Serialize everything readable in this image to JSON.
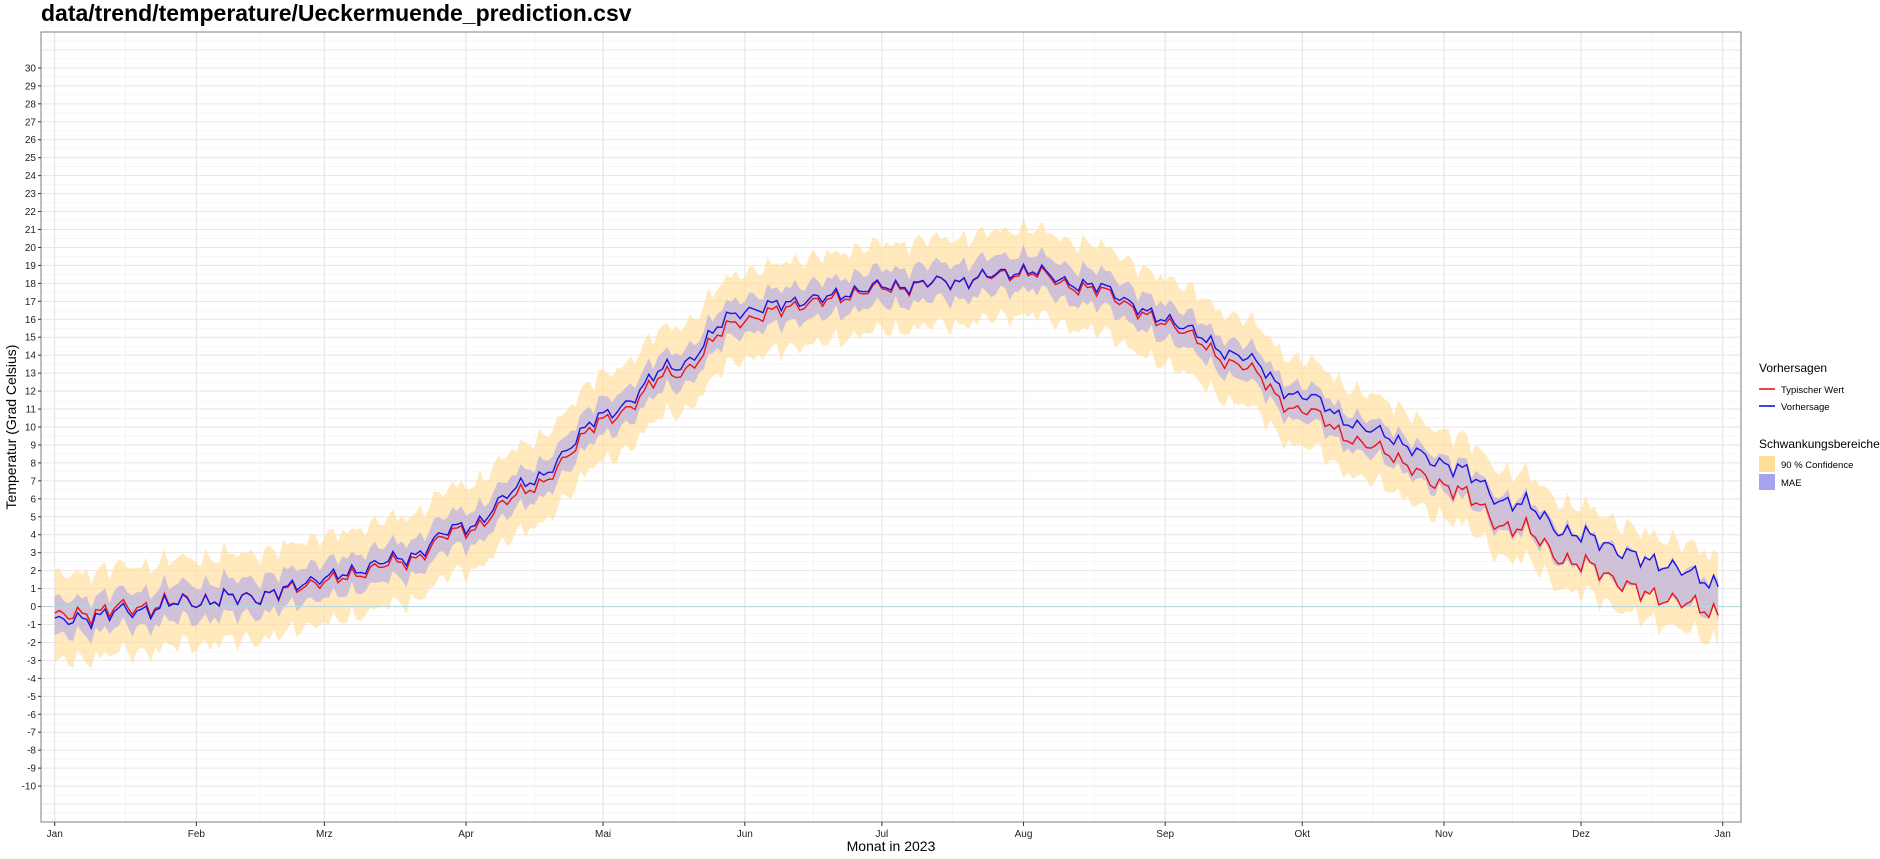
{
  "chart_data": {
    "type": "line",
    "title": "data/trend/temperature/Ueckermuende_prediction.csv",
    "xlabel": "Monat in 2023",
    "ylabel": "Temperatur (Grad Celsius)",
    "ylim": [
      -12,
      32
    ],
    "xlim": [
      -3,
      369
    ],
    "y_ticks": [
      -10,
      -9,
      -8,
      -7,
      -6,
      -5,
      -4,
      -3,
      -2,
      -1,
      0,
      1,
      2,
      3,
      4,
      5,
      6,
      7,
      8,
      9,
      10,
      11,
      12,
      13,
      14,
      15,
      16,
      17,
      18,
      19,
      20,
      21,
      22,
      23,
      24,
      25,
      26,
      27,
      28,
      29,
      30
    ],
    "x_ticks": [
      {
        "day": 0,
        "label": "Jan"
      },
      {
        "day": 31,
        "label": "Feb"
      },
      {
        "day": 59,
        "label": "Mrz"
      },
      {
        "day": 90,
        "label": "Apr"
      },
      {
        "day": 120,
        "label": "Mai"
      },
      {
        "day": 151,
        "label": "Jun"
      },
      {
        "day": 181,
        "label": "Jul"
      },
      {
        "day": 212,
        "label": "Aug"
      },
      {
        "day": 243,
        "label": "Sep"
      },
      {
        "day": 273,
        "label": "Okt"
      },
      {
        "day": 304,
        "label": "Nov"
      },
      {
        "day": 334,
        "label": "Dez"
      },
      {
        "day": 365,
        "label": "Jan"
      }
    ],
    "grid": true,
    "legend_position": "right",
    "zero_line": true,
    "series": [
      {
        "name": "Typischer Wert",
        "color": "#e8151b",
        "role": "typical"
      },
      {
        "name": "Vorhersage",
        "color": "#1a12e6",
        "role": "forecast"
      }
    ],
    "bands": [
      {
        "name": "90 % Confidence",
        "color": "#ffdd99",
        "role": "confidence"
      },
      {
        "name": "MAE",
        "color": "#a7a3ee",
        "role": "mae"
      }
    ],
    "key_points": {
      "day": [
        0,
        15,
        31,
        45,
        59,
        75,
        90,
        105,
        120,
        135,
        151,
        165,
        181,
        196,
        212,
        228,
        243,
        258,
        273,
        288,
        304,
        319,
        334,
        350,
        364
      ],
      "typical": [
        -0.6,
        -0.1,
        0.3,
        0.6,
        1.4,
        2.4,
        4.3,
        6.7,
        10.3,
        12.9,
        16.0,
        16.9,
        17.7,
        18.1,
        18.6,
        17.6,
        15.8,
        13.6,
        10.9,
        8.9,
        6.8,
        4.4,
        2.3,
        0.6,
        -0.3
      ],
      "forecast": [
        -0.9,
        -0.3,
        0.3,
        0.6,
        1.6,
        2.6,
        4.5,
        7.1,
        10.6,
        13.3,
        16.5,
        17.1,
        17.8,
        18.1,
        18.7,
        17.8,
        16.0,
        14.1,
        11.7,
        9.8,
        8.0,
        5.8,
        3.9,
        2.5,
        1.3
      ],
      "mae_halfwidth": 1.0,
      "confidence_halfwidth": 2.4
    }
  },
  "legend": {
    "lines_title": "Vorhersagen",
    "bands_title": "Schwankungsbereiche"
  }
}
